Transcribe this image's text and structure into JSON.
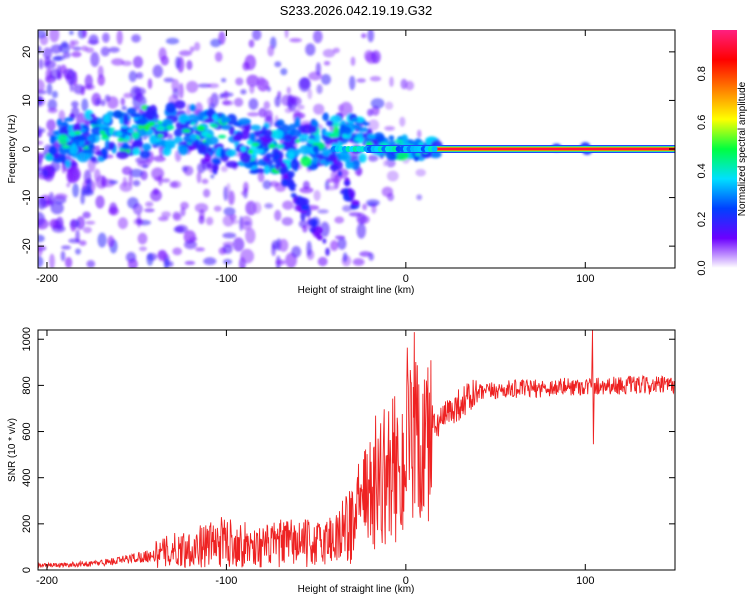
{
  "title": "S233.2026.042.19.19.G32",
  "chart_data": [
    {
      "type": "heatmap",
      "name": "spectrogram",
      "xlabel": "Height of straight line (km)",
      "ylabel": "Frequency (Hz)",
      "xlim": [
        -205,
        150
      ],
      "ylim": [
        -24.5,
        24.5
      ],
      "xticks": [
        -200,
        -100,
        0,
        100
      ],
      "yticks": [
        -20,
        -10,
        0,
        10,
        20
      ],
      "ridge": {
        "x": [
          -205,
          -185,
          -160,
          -140,
          -125,
          -110,
          -95,
          -80,
          -60,
          -40,
          -20,
          -5,
          10,
          20,
          150
        ],
        "y": [
          0.5,
          2,
          3,
          4,
          4.5,
          3,
          1,
          0,
          1,
          2,
          1,
          0.5,
          0.2,
          0,
          0
        ]
      },
      "tonal_line": {
        "x_from": 18,
        "x_to": 150,
        "y": 0
      },
      "colorbar": {
        "label": "Normalized spectral amplitude",
        "ticks": [
          "0.0",
          "0.2",
          "0.4",
          "0.6",
          "0.8"
        ],
        "tick_values": [
          0.0,
          0.2,
          0.4,
          0.6,
          0.8
        ],
        "range": [
          0,
          0.98
        ],
        "colors": [
          "#ffffff",
          "#6c00ff",
          "#0040ff",
          "#00e0ff",
          "#00ff40",
          "#ffff00",
          "#ff8000",
          "#ff0000",
          "#ff2080"
        ]
      }
    },
    {
      "type": "line",
      "name": "snr",
      "xlabel": "Height of straight line (km)",
      "ylabel": "SNR (10 * v/v)",
      "xlim": [
        -205,
        150
      ],
      "ylim": [
        0,
        1040
      ],
      "xticks": [
        -200,
        -100,
        0,
        100
      ],
      "yticks": [
        0,
        200,
        400,
        600,
        800,
        1000
      ],
      "series": [
        {
          "name": "SNR",
          "color": "#ee2222",
          "x": [
            -205,
            -190,
            -175,
            -160,
            -150,
            -140,
            -130,
            -120,
            -110,
            -100,
            -90,
            -80,
            -70,
            -60,
            -50,
            -40,
            -30,
            -25,
            -20,
            -15,
            -10,
            -5,
            0,
            5,
            10,
            15,
            20,
            25,
            30,
            35,
            40,
            50,
            60,
            70,
            80,
            90,
            100,
            110,
            120,
            130,
            140,
            150
          ],
          "y": [
            20,
            22,
            28,
            40,
            55,
            65,
            85,
            95,
            110,
            125,
            110,
            100,
            115,
            120,
            110,
            140,
            200,
            280,
            330,
            380,
            420,
            440,
            480,
            520,
            560,
            610,
            650,
            690,
            720,
            745,
            765,
            778,
            785,
            785,
            790,
            795,
            795,
            800,
            800,
            800,
            800,
            800
          ],
          "spikes": {
            "x": [
              103.5,
              104,
              104.5,
              105
            ],
            "y": [
              800,
              1040,
              545,
              810
            ]
          }
        }
      ]
    }
  ]
}
